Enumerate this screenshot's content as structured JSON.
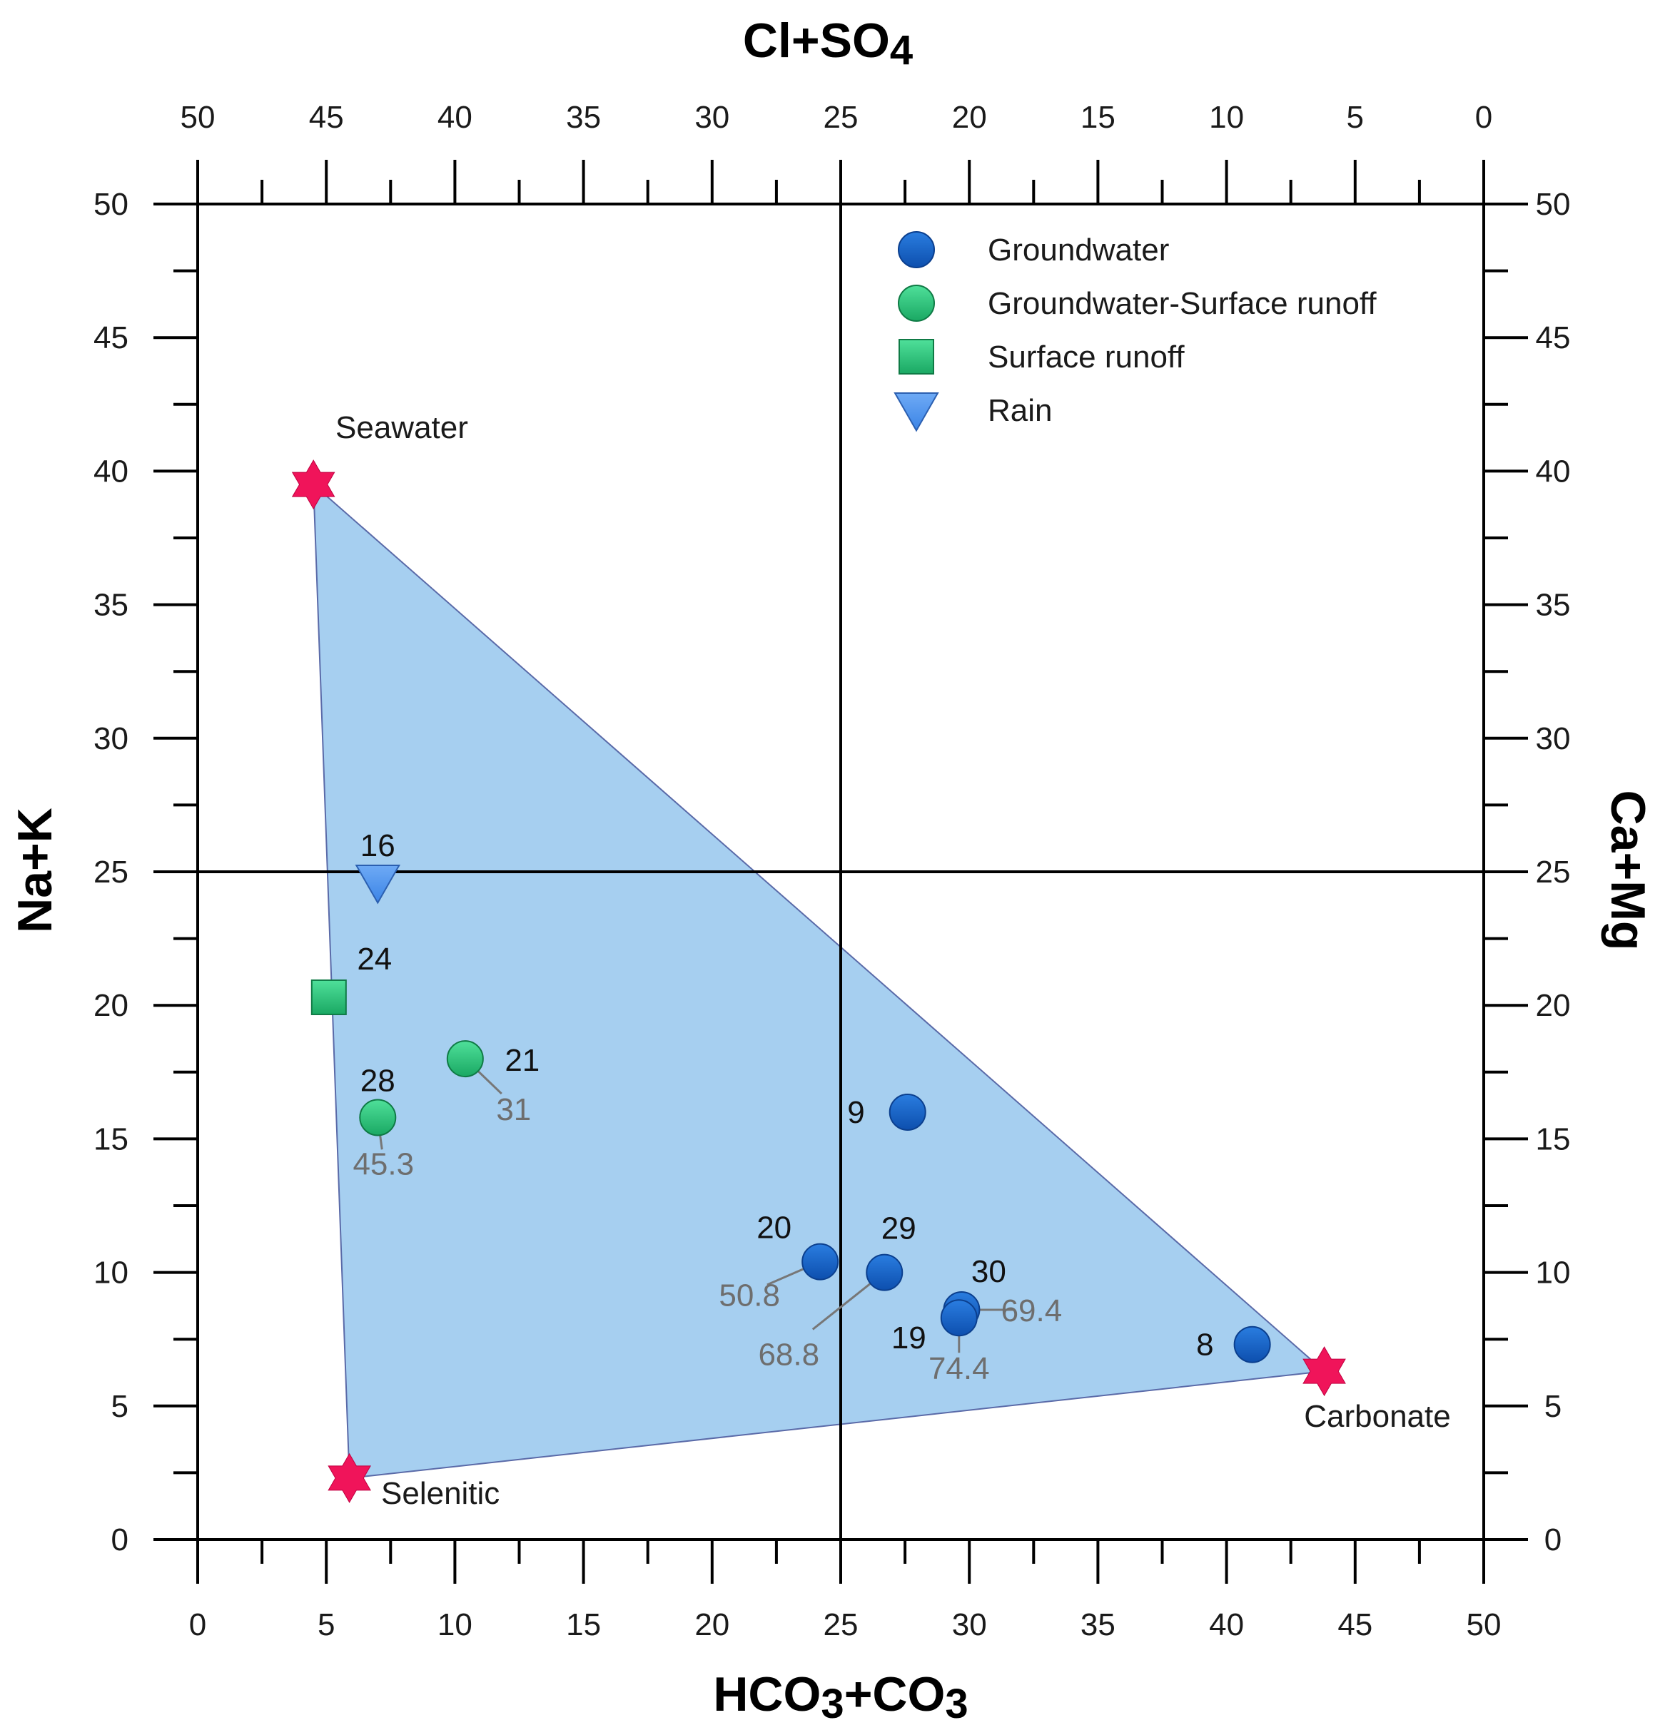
{
  "chart_data": {
    "type": "scatter",
    "axes": {
      "bottom": {
        "label": "HCO3+CO3",
        "range": [
          0,
          50
        ],
        "ticks": [
          "0",
          "5",
          "10",
          "15",
          "20",
          "25",
          "30",
          "35",
          "40",
          "45",
          "50"
        ]
      },
      "top": {
        "label": "Cl+SO4",
        "range": [
          50,
          0
        ],
        "ticks": [
          "50",
          "45",
          "40",
          "35",
          "30",
          "25",
          "20",
          "15",
          "10",
          "5",
          "0"
        ]
      },
      "left": {
        "label": "Na+K",
        "range": [
          0,
          50
        ],
        "ticks": [
          "0",
          "5",
          "10",
          "15",
          "20",
          "25",
          "30",
          "35",
          "40",
          "45",
          "50"
        ]
      },
      "right": {
        "label": "Ca+Mg",
        "range": [
          50,
          0
        ],
        "ticks": [
          "50",
          "45",
          "40",
          "35",
          "30",
          "25",
          "20",
          "15",
          "10",
          "5",
          "0"
        ]
      }
    },
    "reference_lines": {
      "x": 25,
      "y": 25
    },
    "end_members": [
      {
        "name": "Seawater",
        "x": 4.5,
        "y": 39.5
      },
      {
        "name": "Selenitic",
        "x": 5.9,
        "y": 2.3
      },
      {
        "name": "Carbonate",
        "x": 43.8,
        "y": 6.3
      }
    ],
    "mixing_area_color": "#a6cff0",
    "legend": [
      {
        "name": "Groundwater",
        "marker": "circle",
        "color": "#1565c8"
      },
      {
        "name": "Groundwater-Surface runoff",
        "marker": "circle",
        "color": "#2ec47a"
      },
      {
        "name": "Surface runoff",
        "marker": "square",
        "color": "#2ec47a"
      },
      {
        "name": "Rain",
        "marker": "triangle-down",
        "color": "#4d94ee"
      }
    ],
    "series": [
      {
        "name": "Groundwater",
        "points": [
          {
            "id": "9",
            "x": 27.6,
            "y": 16.0
          },
          {
            "id": "20",
            "x": 24.2,
            "y": 10.4,
            "value": "50.8"
          },
          {
            "id": "29",
            "x": 26.7,
            "y": 10.0,
            "value": "68.8"
          },
          {
            "id": "30",
            "x": 29.7,
            "y": 8.6,
            "value": "69.4"
          },
          {
            "id": "19",
            "x": 29.6,
            "y": 8.3,
            "value": "74.4"
          },
          {
            "id": "8",
            "x": 41.0,
            "y": 7.3
          }
        ]
      },
      {
        "name": "Groundwater-Surface runoff",
        "points": [
          {
            "id": "21",
            "x": 10.4,
            "y": 18.0,
            "value": "31"
          },
          {
            "id": "28",
            "x": 7.0,
            "y": 15.8,
            "value": "45.3"
          }
        ]
      },
      {
        "name": "Surface runoff",
        "points": [
          {
            "id": "24",
            "x": 5.1,
            "y": 20.3
          }
        ]
      },
      {
        "name": "Rain",
        "points": [
          {
            "id": "16",
            "x": 7.0,
            "y": 24.6
          }
        ]
      }
    ]
  }
}
